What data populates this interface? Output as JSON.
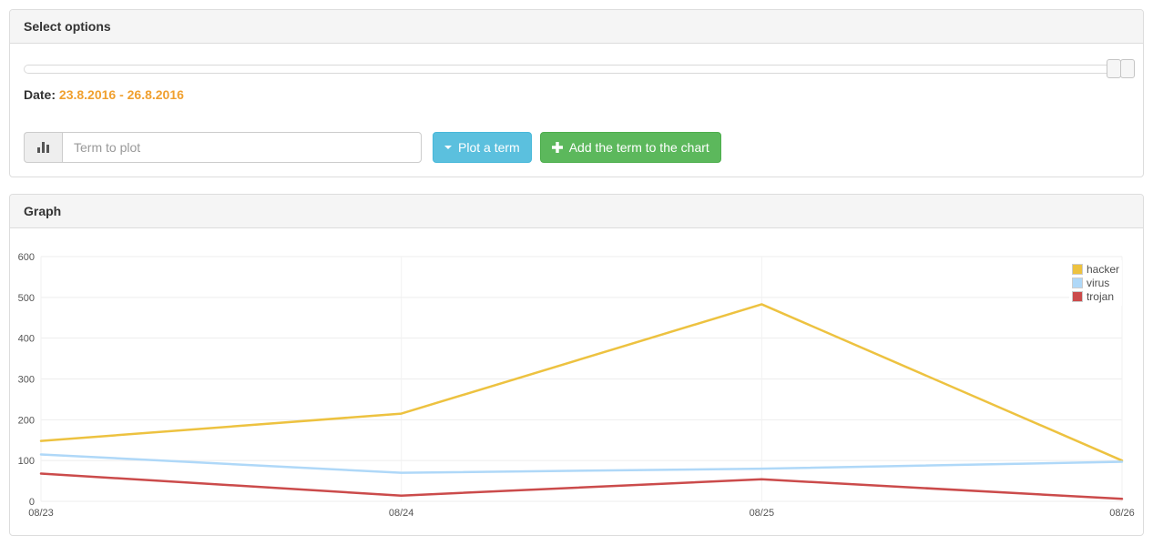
{
  "select_options_panel": {
    "title": "Select options",
    "date_label": "Date:",
    "date_range": "23.8.2016 - 26.8.2016",
    "term_input": {
      "placeholder": "Term to plot"
    },
    "plot_button_label": "Plot a term",
    "add_button_label": "Add the term to the chart"
  },
  "graph_panel": {
    "title": "Graph"
  },
  "colors": {
    "date_range": "#f0a02f",
    "plot_button_bg": "#5bc0de",
    "add_button_bg": "#5cb85c",
    "panel_heading_bg": "#f5f5f5",
    "axis_label": "#545454",
    "gridline": "#ededed"
  },
  "chart_data": {
    "type": "line",
    "title": "",
    "xlabel": "",
    "ylabel": "",
    "categories": [
      "08/23",
      "08/24",
      "08/25",
      "08/26"
    ],
    "series": [
      {
        "name": "hacker",
        "color": "#edc240",
        "values": [
          148,
          215,
          483,
          100
        ]
      },
      {
        "name": "virus",
        "color": "#afd8f8",
        "values": [
          115,
          70,
          80,
          97
        ]
      },
      {
        "name": "trojan",
        "color": "#cb4b4b",
        "values": [
          68,
          14,
          54,
          6
        ]
      }
    ],
    "ylim": [
      0,
      600
    ],
    "yticks": [
      0,
      100,
      200,
      300,
      400,
      500,
      600
    ],
    "grid": true,
    "legend_position": "top-right"
  }
}
